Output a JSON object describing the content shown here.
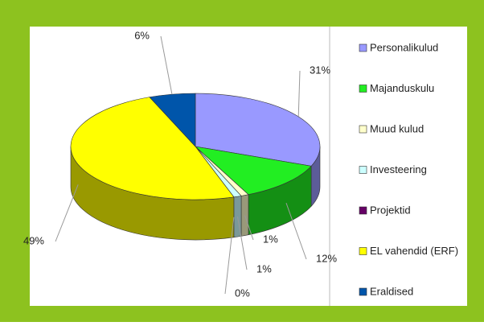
{
  "chart_data": {
    "type": "pie3d",
    "categories": [
      "Personalikulud",
      "Majanduskulu",
      "Muud kulud",
      "Investeering",
      "Projektid",
      "EL vahendid (ERF)",
      "Eraldised"
    ],
    "values": [
      31,
      12,
      1,
      1,
      0,
      49,
      6
    ],
    "value_labels": [
      "31%",
      "12%",
      "1%",
      "1%",
      "0%",
      "49%",
      "6%"
    ],
    "colors": [
      "#9999ff",
      "#22ee22",
      "#ffffcc",
      "#ccffff",
      "#660066",
      "#ffff00",
      "#0055aa"
    ],
    "legend": "right"
  }
}
